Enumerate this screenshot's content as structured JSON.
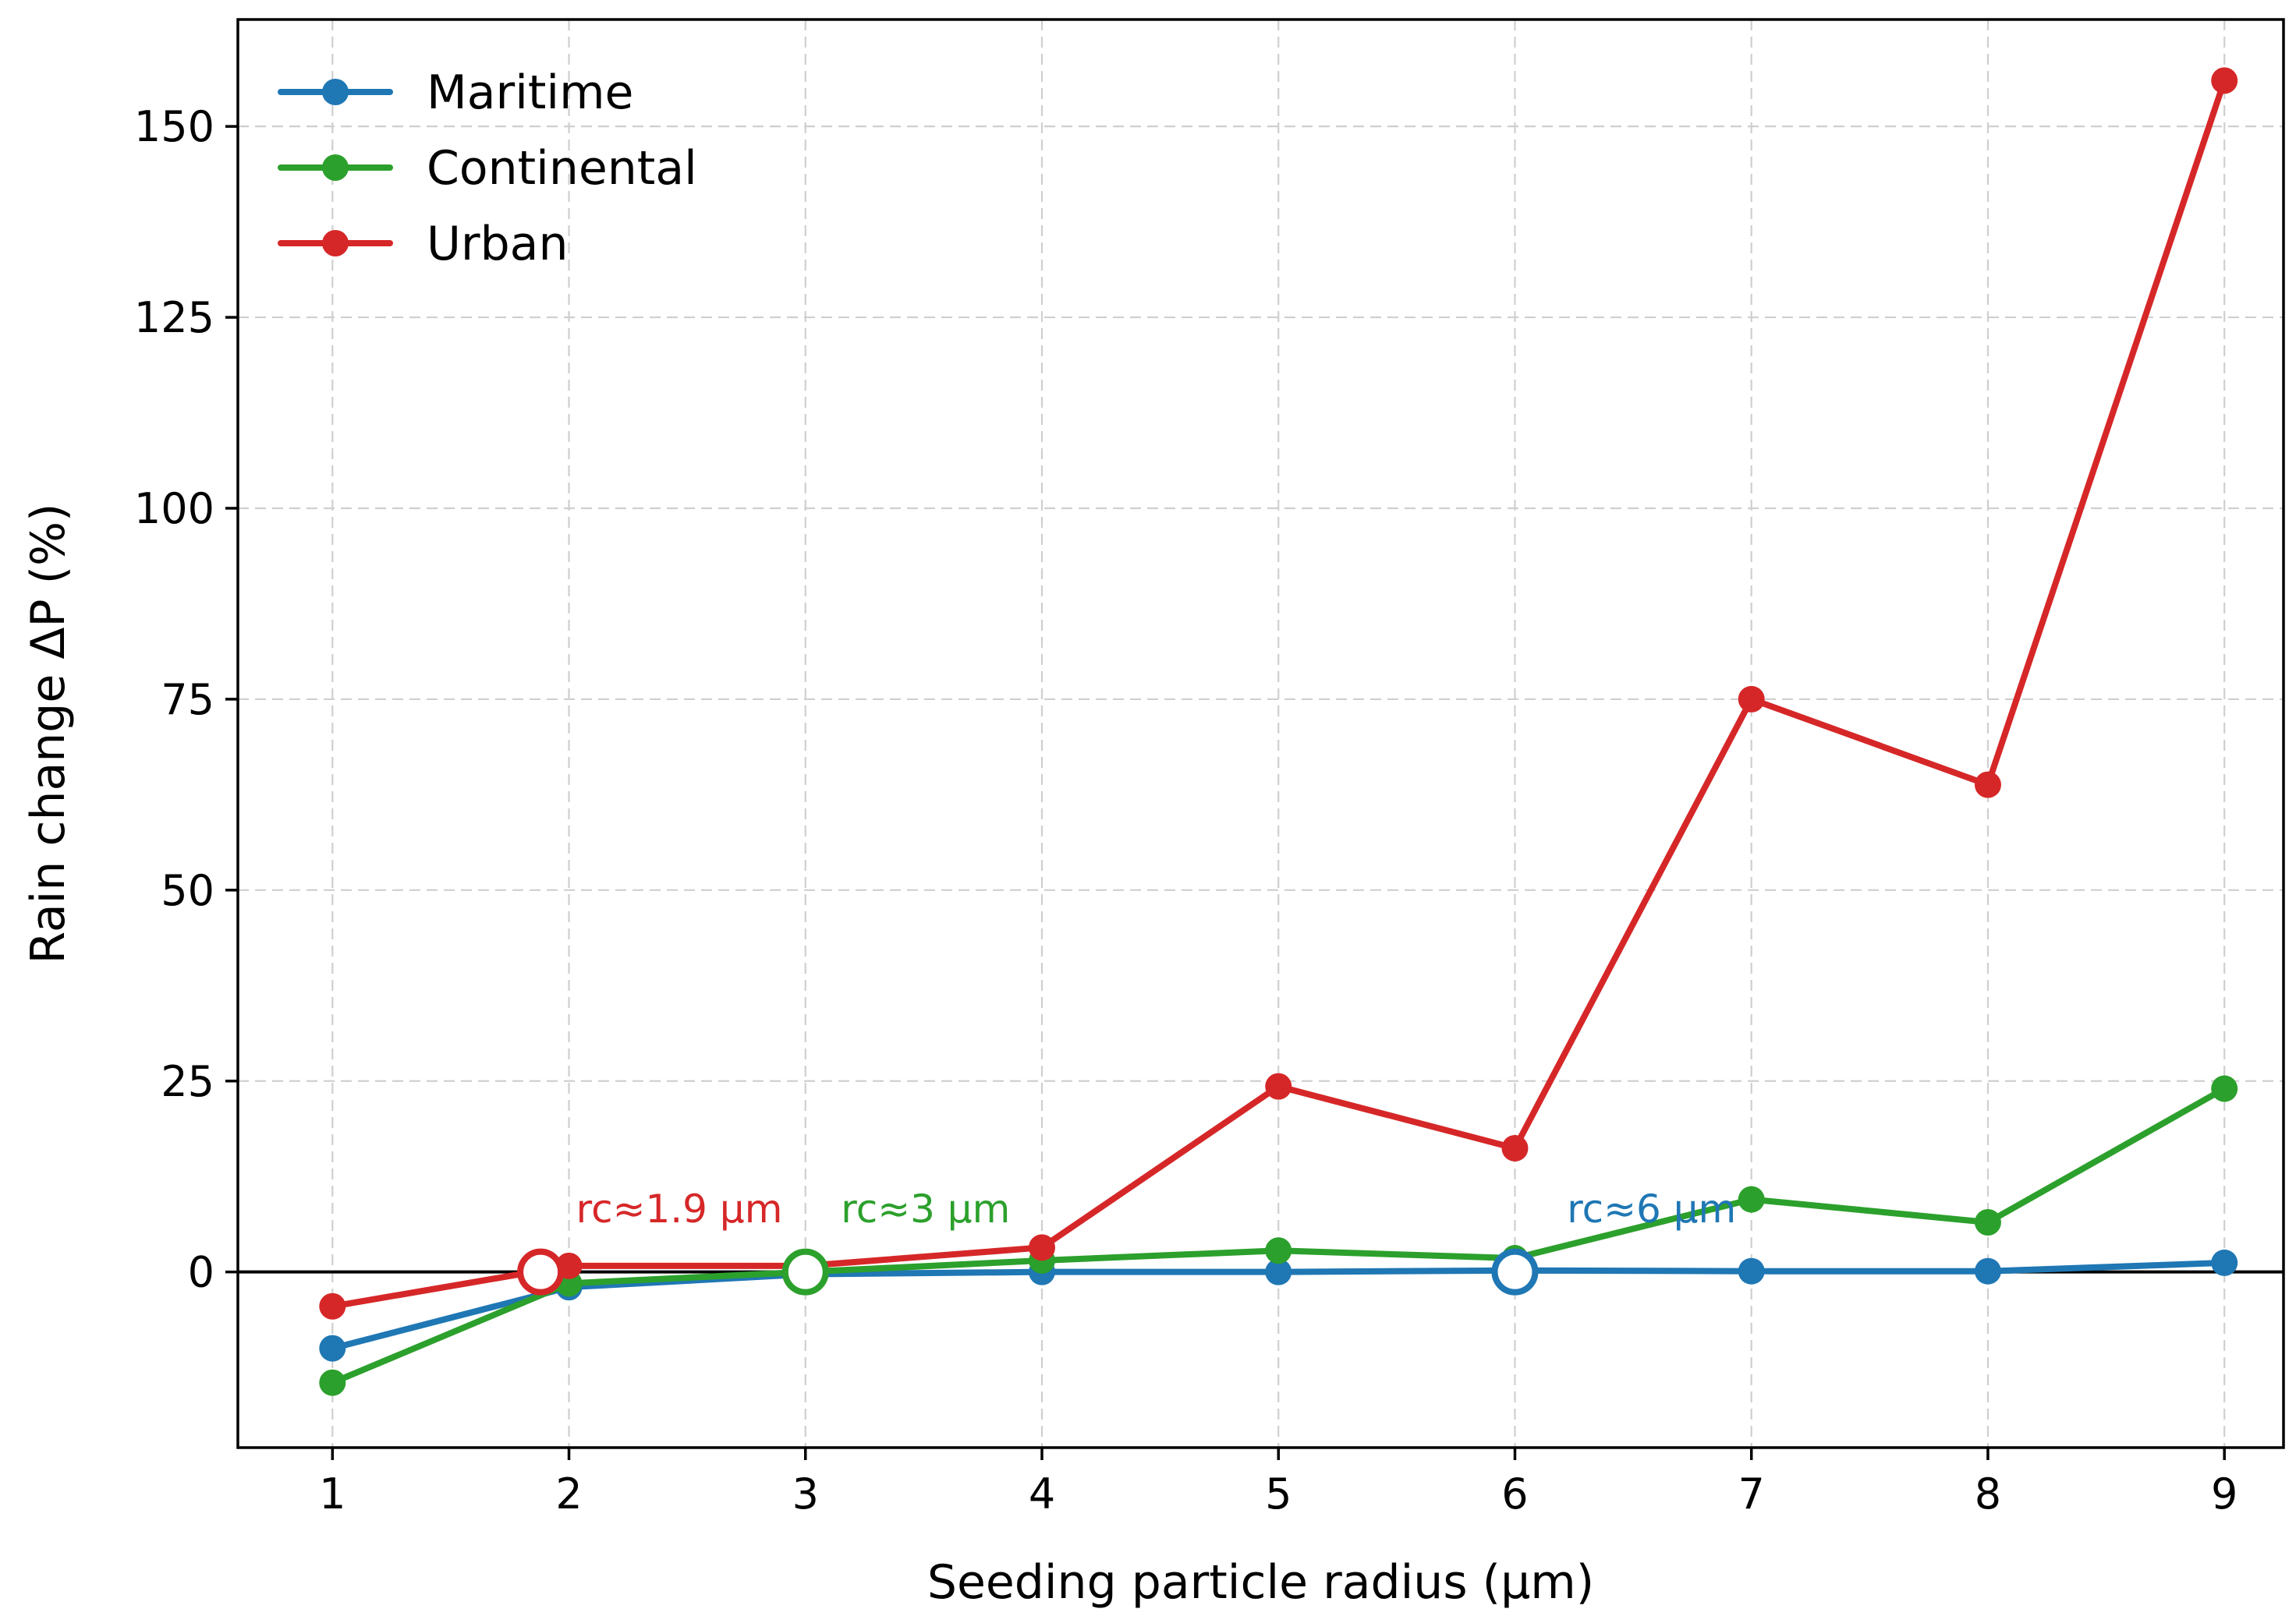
{
  "chart_data": {
    "type": "line",
    "title": "",
    "xlabel": "Seeding particle radius (µm)",
    "ylabel": "Rain change ΔP (%)",
    "x": [
      1,
      2,
      3,
      4,
      5,
      6,
      7,
      8,
      9
    ],
    "x_ticks": [
      "1",
      "2",
      "3",
      "4",
      "5",
      "6",
      "7",
      "8",
      "9"
    ],
    "y_ticks": [
      0,
      25,
      50,
      75,
      100,
      125,
      150
    ],
    "xlim": [
      0.6,
      9.25
    ],
    "ylim": [
      -23,
      164
    ],
    "grid": true,
    "legend_position": "top-left",
    "series": [
      {
        "name": "Maritime",
        "color": "#1f77b4",
        "values": [
          -10,
          -2,
          -0.3,
          0,
          0,
          0.2,
          0.1,
          0.1,
          1.2
        ]
      },
      {
        "name": "Continental",
        "color": "#2ca02c",
        "values": [
          -14.5,
          -1.5,
          0,
          1.5,
          2.8,
          1.8,
          9.5,
          6.5,
          24
        ]
      },
      {
        "name": "Urban",
        "color": "#d62728",
        "values": [
          -4.5,
          0.8,
          0.8,
          3.2,
          24.3,
          16.2,
          75,
          63.8,
          156
        ]
      }
    ],
    "thresholds": [
      {
        "label": "rc≈1.9 µm",
        "x": 1.88,
        "y": 0,
        "color": "#d62728",
        "text_x": 2.03,
        "text_y": 6.5
      },
      {
        "label": "rc≈3 µm",
        "x": 3.0,
        "y": 0,
        "color": "#2ca02c",
        "text_x": 3.15,
        "text_y": 6.5
      },
      {
        "label": "rc≈6 µm",
        "x": 6.0,
        "y": 0,
        "color": "#1f77b4",
        "text_x": 6.22,
        "text_y": 6.5
      }
    ]
  }
}
